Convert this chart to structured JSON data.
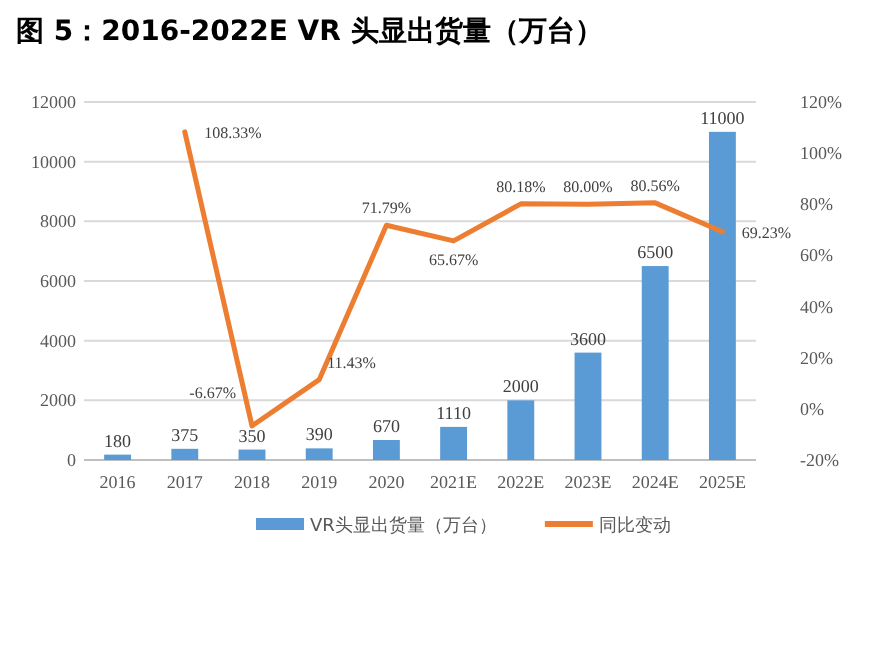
{
  "chart_data": {
    "type": "bar",
    "title": "图 5：2016-2022E VR 头显出货量（万台）",
    "categories": [
      "2016",
      "2017",
      "2018",
      "2019",
      "2020",
      "2021E",
      "2022E",
      "2023E",
      "2024E",
      "2025E"
    ],
    "series": [
      {
        "name": "VR头显出货量（万台）",
        "color": "#5b9bd5",
        "values": [
          180,
          375,
          350,
          390,
          670,
          1110,
          2000,
          3600,
          6500,
          11000
        ],
        "value_labels": [
          "180",
          "375",
          "350",
          "390",
          "670",
          "1110",
          "2000",
          "3600",
          "6500",
          "11000"
        ]
      },
      {
        "name": "同比变动",
        "type": "line",
        "axis": "y2",
        "color": "#ed7d31",
        "values": [
          null,
          108.33,
          -6.67,
          11.43,
          71.79,
          65.67,
          80.18,
          80.0,
          80.56,
          69.23
        ],
        "value_labels": [
          null,
          "108.33%",
          "-6.67%",
          "11.43%",
          "71.79%",
          "65.67%",
          "80.18%",
          "80.00%",
          "80.56%",
          "69.23%"
        ]
      }
    ],
    "ylim": [
      0,
      12000
    ],
    "yticks": [
      0,
      2000,
      4000,
      6000,
      8000,
      10000,
      12000
    ],
    "y2lim": [
      -20,
      120
    ],
    "y2ticks": [
      {
        "value": -20,
        "label": "-20%"
      },
      {
        "value": 0,
        "label": "0%"
      },
      {
        "value": 20,
        "label": "20%"
      },
      {
        "value": 40,
        "label": "40%"
      },
      {
        "value": 60,
        "label": "60%"
      },
      {
        "value": 80,
        "label": "80%"
      },
      {
        "value": 100,
        "label": "100%"
      },
      {
        "value": 120,
        "label": "120%"
      }
    ],
    "grid": "y",
    "legend": "bottom"
  }
}
